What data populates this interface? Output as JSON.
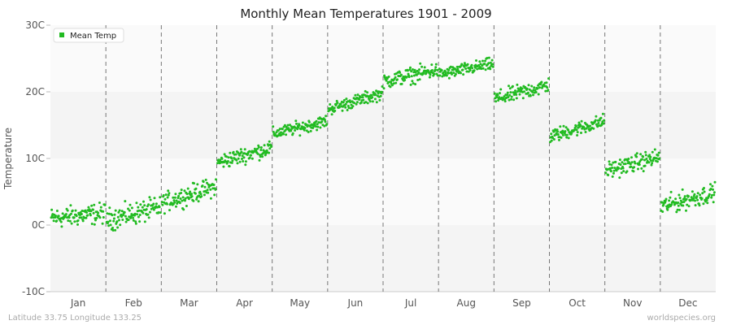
{
  "chart_data": {
    "type": "scatter",
    "title": "Monthly Mean Temperatures 1901 - 2009",
    "ylabel": "Temperature",
    "xlabel": "",
    "ylim": [
      -10,
      30
    ],
    "yticks": [
      {
        "value": 30,
        "label": "30C"
      },
      {
        "value": 20,
        "label": "20C"
      },
      {
        "value": 10,
        "label": "10C"
      },
      {
        "value": 0,
        "label": "0C"
      },
      {
        "value": -10,
        "label": "-10C"
      }
    ],
    "categories": [
      "Jan",
      "Feb",
      "Mar",
      "Apr",
      "May",
      "Jun",
      "Jul",
      "Aug",
      "Sep",
      "Oct",
      "Nov",
      "Dec"
    ],
    "series": [
      {
        "name": "Mean Temp",
        "color": "#22bb22",
        "years": [
          1901,
          2009
        ],
        "monthly_trend": [
          {
            "month": "Jan",
            "start": 1.0,
            "end": 1.8,
            "spread": 1.3
          },
          {
            "month": "Feb",
            "start": 0.8,
            "end": 2.6,
            "spread": 1.4
          },
          {
            "month": "Mar",
            "start": 3.3,
            "end": 5.8,
            "spread": 1.2
          },
          {
            "month": "Apr",
            "start": 9.4,
            "end": 11.6,
            "spread": 1.0
          },
          {
            "month": "May",
            "start": 13.7,
            "end": 15.6,
            "spread": 0.8
          },
          {
            "month": "Jun",
            "start": 17.4,
            "end": 19.8,
            "spread": 0.8
          },
          {
            "month": "Jul",
            "start": 21.6,
            "end": 23.3,
            "spread": 1.0
          },
          {
            "month": "Aug",
            "start": 22.6,
            "end": 24.2,
            "spread": 0.8
          },
          {
            "month": "Sep",
            "start": 18.9,
            "end": 21.0,
            "spread": 1.0
          },
          {
            "month": "Oct",
            "start": 13.3,
            "end": 15.6,
            "spread": 0.9
          },
          {
            "month": "Nov",
            "start": 8.2,
            "end": 10.2,
            "spread": 1.1
          },
          {
            "month": "Dec",
            "start": 2.8,
            "end": 4.9,
            "spread": 1.2
          }
        ]
      }
    ],
    "grid": true,
    "legend": "top-left"
  },
  "footer": {
    "location": "Latitude 33.75 Longitude 133.25",
    "source": "worldspecies.org"
  }
}
